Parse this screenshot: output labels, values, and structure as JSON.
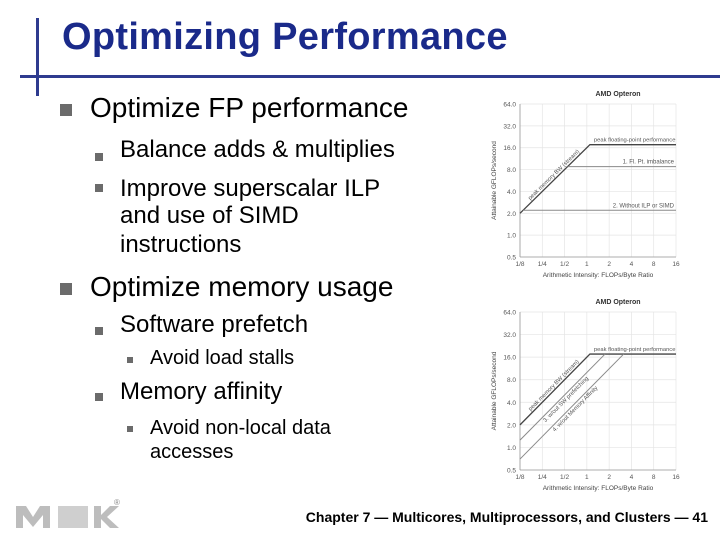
{
  "slide": {
    "title": "Optimizing Performance",
    "footer": "Chapter 7 — Multicores, Multiprocessors, and Clusters — 41",
    "logo_name": "MK"
  },
  "bullets": {
    "fp": {
      "heading": "Optimize FP performance",
      "items": [
        "Balance adds & multiplies",
        "Improve superscalar ILP",
        "and use of SIMD",
        "instructions"
      ]
    },
    "mem": {
      "heading": "Optimize memory usage",
      "prefetch": "Software prefetch",
      "prefetch_sub": "Avoid load stalls",
      "affinity": "Memory affinity",
      "affinity_sub": [
        "Avoid non-local data",
        "accesses"
      ]
    }
  },
  "chart_data": [
    {
      "type": "line",
      "title": "AMD Opteron",
      "xlabel": "Arithmetic Intensity: FLOPs/Byte Ratio",
      "ylabel": "Attainable GFLOPs/second",
      "x_ticks": [
        "1/8",
        "1/4",
        "1/2",
        "1",
        "2",
        "4",
        "8",
        "16"
      ],
      "y_ticks": [
        "0.5",
        "1.0",
        "2.0",
        "4.0",
        "8.0",
        "16.0",
        "32.0",
        "64.0"
      ],
      "x_scale": "log2",
      "y_scale": "log2",
      "xlim": [
        0.125,
        16
      ],
      "ylim": [
        0.5,
        64
      ],
      "roofline": {
        "peak_gflops": 17.6,
        "peak_bandwidth_gbs": 16
      },
      "annotations": [
        "peak floating-point performance",
        "peak memory BW (stream)",
        "1. Fl. Pt. imbalance",
        "2. Without ILP or SIMD"
      ],
      "ceilings": [
        {
          "name": "1. Fl. Pt. imbalance",
          "gflops": 8.8
        },
        {
          "name": "2. Without ILP or SIMD",
          "gflops": 2.2
        }
      ]
    },
    {
      "type": "line",
      "title": "AMD Opteron",
      "xlabel": "Arithmetic Intensity: FLOPs/Byte Ratio",
      "ylabel": "Attainable GFLOPs/second",
      "x_ticks": [
        "1/8",
        "1/4",
        "1/2",
        "1",
        "2",
        "4",
        "8",
        "16"
      ],
      "y_ticks": [
        "0.5",
        "1.0",
        "2.0",
        "4.0",
        "8.0",
        "16.0",
        "32.0",
        "64.0"
      ],
      "x_scale": "log2",
      "y_scale": "log2",
      "xlim": [
        0.125,
        16
      ],
      "ylim": [
        0.5,
        64
      ],
      "roofline": {
        "peak_gflops": 17.6,
        "peak_bandwidth_gbs": 16
      },
      "annotations": [
        "peak floating-point performance",
        "peak memory BW (stream)",
        "3. w/out SW prefetching",
        "4. w/out Memory Affinity"
      ],
      "bw_ceilings": [
        {
          "name": "3. w/out SW prefetching",
          "bandwidth_gbs": 10
        },
        {
          "name": "4. w/out Memory Affinity",
          "bandwidth_gbs": 5.6
        }
      ]
    }
  ],
  "colors": {
    "title": "#1a2a8a",
    "accent": "#2e3b8f",
    "bullet": "#6b6b6b",
    "chart_gray": "#8a8a8a"
  }
}
